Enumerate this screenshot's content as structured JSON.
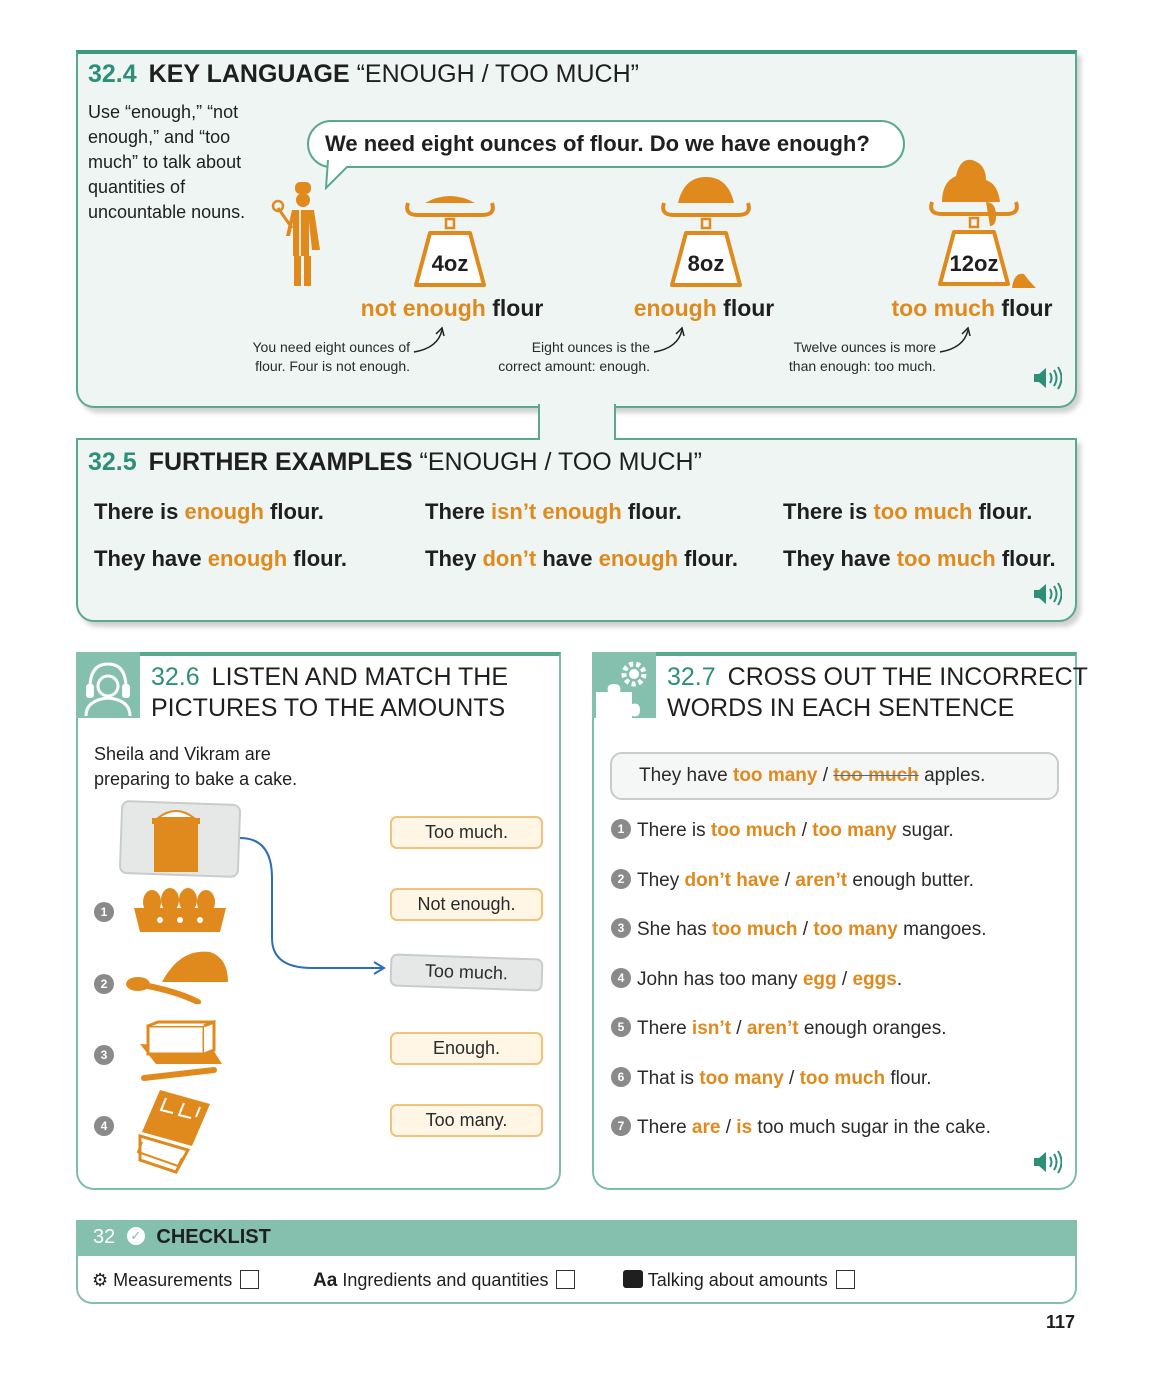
{
  "section_32_4": {
    "number": "32.4",
    "title_bold": "KEY LANGUAGE",
    "title_rest": "“ENOUGH / TOO MUCH”",
    "intro": "Use “enough,” “not enough,” and “too much” to talk about quantities of uncountable nouns.",
    "speech": "We need eight ounces of flour. Do we have enough?",
    "scales": [
      {
        "weight": "4oz",
        "amount": "not enough",
        "noun": "flour",
        "note_1": "You need eight ounces of",
        "note_2": "flour. Four is not enough."
      },
      {
        "weight": "8oz",
        "amount": "enough",
        "noun": "flour",
        "note_1": "Eight ounces is the",
        "note_2": "correct amount: enough."
      },
      {
        "weight": "12oz",
        "amount": "too much",
        "noun": "flour",
        "note_1": "Twelve ounces is more",
        "note_2": "than enough: too much."
      }
    ]
  },
  "section_32_5": {
    "number": "32.5",
    "title_bold": "FURTHER EXAMPLES",
    "title_rest": "“ENOUGH / TOO MUCH”",
    "rows": [
      [
        {
          "a": "There is ",
          "b": "enough",
          "c": " flour."
        },
        {
          "a": "There ",
          "b": "isn’t enough",
          "c": " flour."
        },
        {
          "a": "There is ",
          "b": "too much",
          "c": " flour."
        }
      ],
      [
        {
          "a": "They have ",
          "b": "enough",
          "c": " flour."
        },
        {
          "a": "They ",
          "b": "don’t",
          "c": " have ",
          "d": "enough",
          "e": " flour."
        },
        {
          "a": "They have ",
          "b": "too much",
          "c": " flour."
        }
      ]
    ]
  },
  "section_32_6": {
    "number": "32.6",
    "title_line1": "LISTEN AND MATCH THE",
    "title_line2": "PICTURES TO THE AMOUNTS",
    "intro_line1": "Sheila and Vikram are",
    "intro_line2": "preparing to bake a cake.",
    "numbers": [
      "1",
      "2",
      "3",
      "4"
    ],
    "options": [
      "Too much.",
      "Not enough.",
      "Too much.",
      "Enough.",
      "Too many."
    ]
  },
  "section_32_7": {
    "number": "32.7",
    "title_line1": "CROSS OUT THE INCORRECT",
    "title_line2": "WORDS IN EACH SENTENCE",
    "example": {
      "a": "They have ",
      "b": "too many",
      "sep": " / ",
      "c": "too much",
      "d": " apples."
    },
    "items": [
      {
        "num": "1",
        "a": "There is ",
        "b": "too much",
        "sep": " / ",
        "c": "too many",
        "d": " sugar."
      },
      {
        "num": "2",
        "a": "They ",
        "b": "don’t have",
        "sep": " / ",
        "c": "aren’t",
        "d": " enough butter."
      },
      {
        "num": "3",
        "a": "She has ",
        "b": "too much",
        "sep": " / ",
        "c": "too many",
        "d": " mangoes."
      },
      {
        "num": "4",
        "a": "John has too many ",
        "b": "egg",
        "sep": " / ",
        "c": "eggs",
        "d": "."
      },
      {
        "num": "5",
        "a": "There ",
        "b": "isn’t",
        "sep": " / ",
        "c": "aren’t",
        "d": " enough oranges."
      },
      {
        "num": "6",
        "a": "That is ",
        "b": "too many",
        "sep": " / ",
        "c": "too much",
        "d": " flour."
      },
      {
        "num": "7",
        "a": "There ",
        "b": "are",
        "sep": " / ",
        "c": "is",
        "d": " too much sugar in the cake."
      }
    ]
  },
  "checklist": {
    "number": "32",
    "title": "CHECKLIST",
    "items": [
      {
        "icon": "gears-icon",
        "label": "Measurements"
      },
      {
        "icon": "Aa",
        "label": "Ingredients and quantities"
      },
      {
        "icon": "puzzle-icon",
        "label": "Talking about amounts"
      }
    ]
  },
  "page_number": "117",
  "colors": {
    "teal": "#3d9a7f",
    "orange": "#e08a1e",
    "panel_bg": "#eef5f2"
  }
}
